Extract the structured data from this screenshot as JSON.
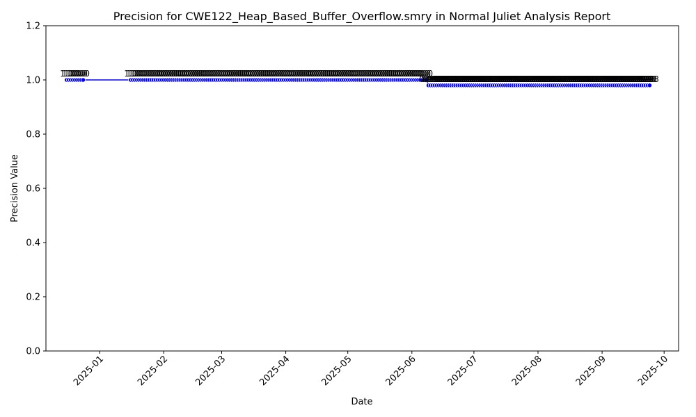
{
  "chart_data": {
    "type": "line",
    "title": "Precision for CWE122_Heap_Based_Buffer_Overflow.smry in Normal Juliet Analysis Report",
    "xlabel": "Date",
    "ylabel": "Precision Value",
    "ylim": [
      0,
      1.2
    ],
    "yticks": [
      "0.0",
      "0.2",
      "0.4",
      "0.6",
      "0.8",
      "1.0",
      "1.2"
    ],
    "xlim": [
      "2024-12-06",
      "2025-10-08"
    ],
    "xticks": [
      {
        "date": "2025-01-01",
        "label": "2025-01"
      },
      {
        "date": "2025-02-01",
        "label": "2025-02"
      },
      {
        "date": "2025-03-01",
        "label": "2025-03"
      },
      {
        "date": "2025-04-01",
        "label": "2025-04"
      },
      {
        "date": "2025-05-01",
        "label": "2025-05"
      },
      {
        "date": "2025-06-01",
        "label": "2025-06"
      },
      {
        "date": "2025-07-01",
        "label": "2025-07"
      },
      {
        "date": "2025-08-01",
        "label": "2025-08"
      },
      {
        "date": "2025-09-01",
        "label": "2025-09"
      },
      {
        "date": "2025-10-01",
        "label": "2025-10"
      }
    ],
    "grid": false,
    "colors": {
      "line": "#0000ff",
      "marker": "#0000ff",
      "marker_edge": "#ffffff"
    },
    "series": [
      {
        "segments": [
          {
            "start": "2024-12-16",
            "end": "2024-12-24",
            "value": 1.0,
            "label": "1.0"
          },
          {
            "start": "2025-01-16",
            "end": "2025-06-08",
            "value": 1.0,
            "label": "1.0"
          },
          {
            "start": "2025-06-09",
            "end": "2025-09-24",
            "value": 0.98,
            "label": "0.98"
          }
        ]
      }
    ]
  }
}
